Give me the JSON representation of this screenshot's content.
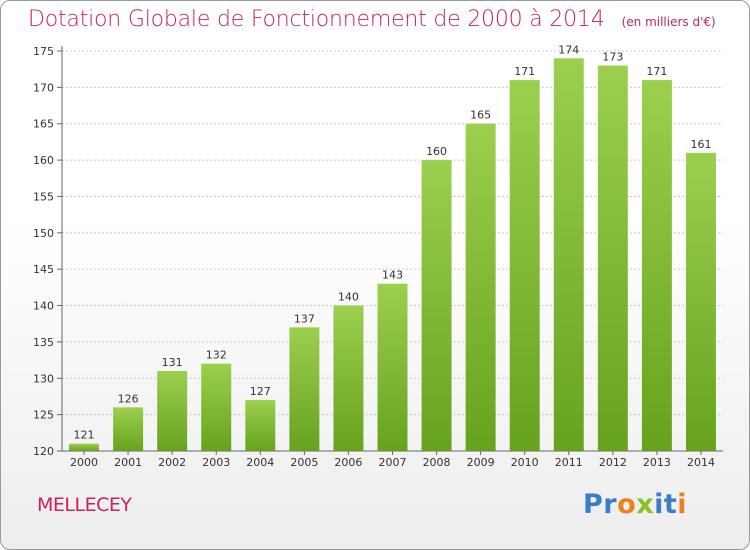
{
  "title": "Dotation Globale de Fonctionnement de 2000 à 2014",
  "unit_note": "(en milliers d'€)",
  "commune": "MELLECEY",
  "brand": {
    "letters": [
      {
        "char": "P",
        "color": "#3a7dc9"
      },
      {
        "char": "r",
        "color": "#3a7dc9"
      },
      {
        "char": "o",
        "color": "#e8821e"
      },
      {
        "char": "x",
        "color": "#8cbf26"
      },
      {
        "char": "i",
        "color": "#3a7dc9"
      },
      {
        "char": "t",
        "color": "#3a7dc9"
      },
      {
        "char": "i",
        "color": "#e8821e"
      }
    ]
  },
  "colors": {
    "title": "#c8235a",
    "bar_light": "#9ccf4e",
    "bar_dark": "#66a31d",
    "grid": "#c8c8c8"
  },
  "chart_data": {
    "type": "bar",
    "title": "Dotation Globale de Fonctionnement de 2000 à 2014",
    "subtitle": "(en milliers d'€)",
    "categories": [
      "2000",
      "2001",
      "2002",
      "2003",
      "2004",
      "2005",
      "2006",
      "2007",
      "2008",
      "2009",
      "2010",
      "2011",
      "2012",
      "2013",
      "2014"
    ],
    "values": [
      121,
      126,
      131,
      132,
      127,
      137,
      140,
      143,
      160,
      165,
      171,
      174,
      173,
      171,
      161
    ],
    "ylim": [
      120,
      175
    ],
    "yticks": [
      120,
      125,
      130,
      135,
      140,
      145,
      150,
      155,
      160,
      165,
      170,
      175
    ],
    "grid": true,
    "xlabel": "",
    "ylabel": ""
  }
}
